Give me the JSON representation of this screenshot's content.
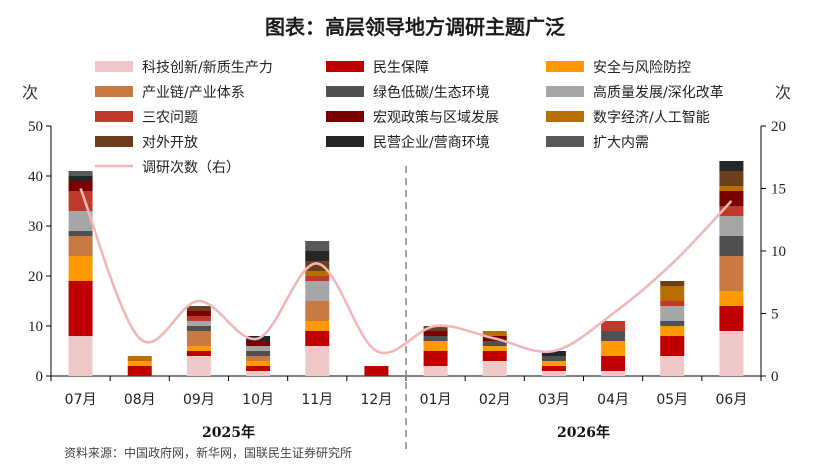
{
  "title": "图表：高层领导地方调研主题广泛",
  "source": "资料来源：中国政府网，新华网，国联民生证券研究所",
  "chart_data": {
    "type": "bar",
    "stacked": true,
    "categories": [
      "07月",
      "08月",
      "09月",
      "10月",
      "11月",
      "12月",
      "01月",
      "02月",
      "03月",
      "04月",
      "05月",
      "06月"
    ],
    "year_labels": [
      {
        "label": "2025年",
        "from": 0,
        "to": 5
      },
      {
        "label": "2026年",
        "from": 6,
        "to": 11
      }
    ],
    "divider_after_category": 5,
    "y_left": {
      "unit": "次",
      "min": 0,
      "max": 50,
      "ticks": [
        0,
        10,
        20,
        30,
        40,
        50
      ]
    },
    "y_right": {
      "unit": "次",
      "min": 0,
      "max": 20,
      "ticks": [
        0,
        5,
        10,
        15,
        20
      ]
    },
    "series": [
      {
        "name": "科技创新/新质生产力",
        "color": "#f0c8c8",
        "values": [
          8,
          0,
          4,
          1,
          6,
          0,
          2,
          3,
          1,
          1,
          4,
          9
        ]
      },
      {
        "name": "民生保障",
        "color": "#c00000",
        "values": [
          11,
          2,
          1,
          1,
          3,
          2,
          3,
          2,
          1,
          3,
          4,
          5
        ]
      },
      {
        "name": "安全与风险防控",
        "color": "#ff9900",
        "values": [
          5,
          1,
          1,
          1,
          2,
          0,
          2,
          1,
          1,
          3,
          2,
          3
        ]
      },
      {
        "name": "产业链/产业体系",
        "color": "#c87a40",
        "values": [
          4,
          0,
          3,
          1,
          4,
          0,
          0,
          0,
          0,
          0,
          0,
          7
        ]
      },
      {
        "name": "绿色低碳/生态环境",
        "color": "#505050",
        "values": [
          1,
          0,
          1,
          1,
          0,
          0,
          1,
          1,
          1,
          2,
          1,
          4
        ]
      },
      {
        "name": "高质量发展/深化改革",
        "color": "#a6a6a6",
        "values": [
          4,
          0,
          1,
          1,
          4,
          0,
          0,
          0,
          0,
          0,
          3,
          4
        ]
      },
      {
        "name": "三农问题",
        "color": "#c0392b",
        "values": [
          4,
          0,
          1,
          0,
          1,
          0,
          0,
          0,
          0,
          2,
          1,
          2
        ]
      },
      {
        "name": "宏观政策与区域发展",
        "color": "#7a0000",
        "values": [
          2,
          0,
          1,
          1,
          0,
          0,
          1,
          1,
          0,
          0,
          0,
          3
        ]
      },
      {
        "name": "数字经济/人工智能",
        "color": "#b86e00",
        "values": [
          0,
          1,
          0,
          0,
          1,
          0,
          0,
          1,
          0,
          0,
          3,
          1
        ]
      },
      {
        "name": "对外开放",
        "color": "#6b3e1e",
        "values": [
          0,
          0,
          1,
          0,
          2,
          0,
          1,
          0,
          0,
          0,
          1,
          3
        ]
      },
      {
        "name": "民营企业/营商环境",
        "color": "#262626",
        "values": [
          1,
          0,
          0,
          1,
          2,
          0,
          0,
          0,
          1,
          0,
          0,
          2
        ]
      },
      {
        "name": "扩大内需",
        "color": "#595959",
        "values": [
          1,
          0,
          0,
          0,
          2,
          0,
          0,
          0,
          0,
          0,
          0,
          0
        ]
      }
    ],
    "line": {
      "name": "调研次数（右）",
      "color": "#f2b8b8",
      "axis": "right",
      "values": [
        15,
        3,
        6,
        3,
        9,
        2,
        4,
        3,
        2,
        5,
        9,
        14
      ]
    },
    "legend_position": "top",
    "grid": false
  }
}
